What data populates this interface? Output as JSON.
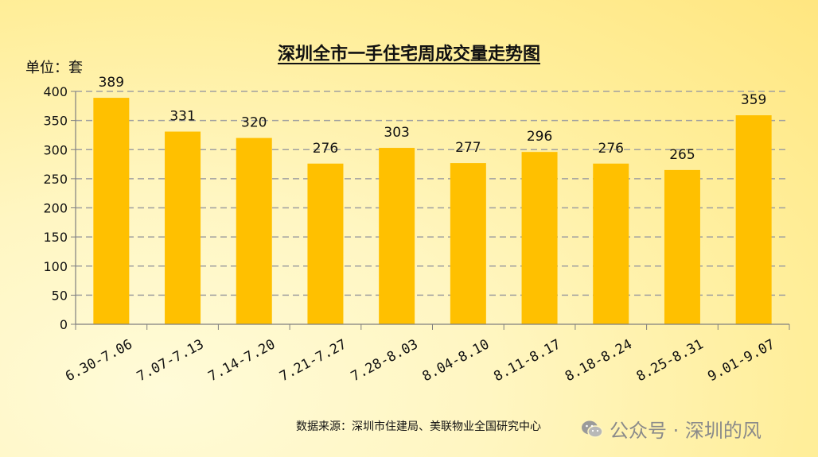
{
  "title": "深圳全市一手住宅周成交量走势图",
  "unit_label": "单位：套",
  "source": "数据来源：深圳市住建局、美联物业全国研究中心",
  "brand": "公众号 · 深圳的风",
  "colors": {
    "bar": "#FFC000",
    "grid": "#a0a0a0",
    "axis": "#7f7f7f"
  },
  "chart_data": {
    "type": "bar",
    "categories": [
      "6.30-7.06",
      "7.07-7.13",
      "7.14-7.20",
      "7.21-7.27",
      "7.28-8.03",
      "8.04-8.10",
      "8.11-8.17",
      "8.18-8.24",
      "8.25-8.31",
      "9.01-9.07"
    ],
    "values": [
      389,
      331,
      320,
      276,
      303,
      277,
      296,
      276,
      265,
      359
    ],
    "ylim": [
      0,
      400
    ],
    "yticks": [
      0,
      50,
      100,
      150,
      200,
      250,
      300,
      350,
      400
    ],
    "grid": true,
    "title": "深圳全市一手住宅周成交量走势图",
    "ylabel": "单位：套"
  }
}
